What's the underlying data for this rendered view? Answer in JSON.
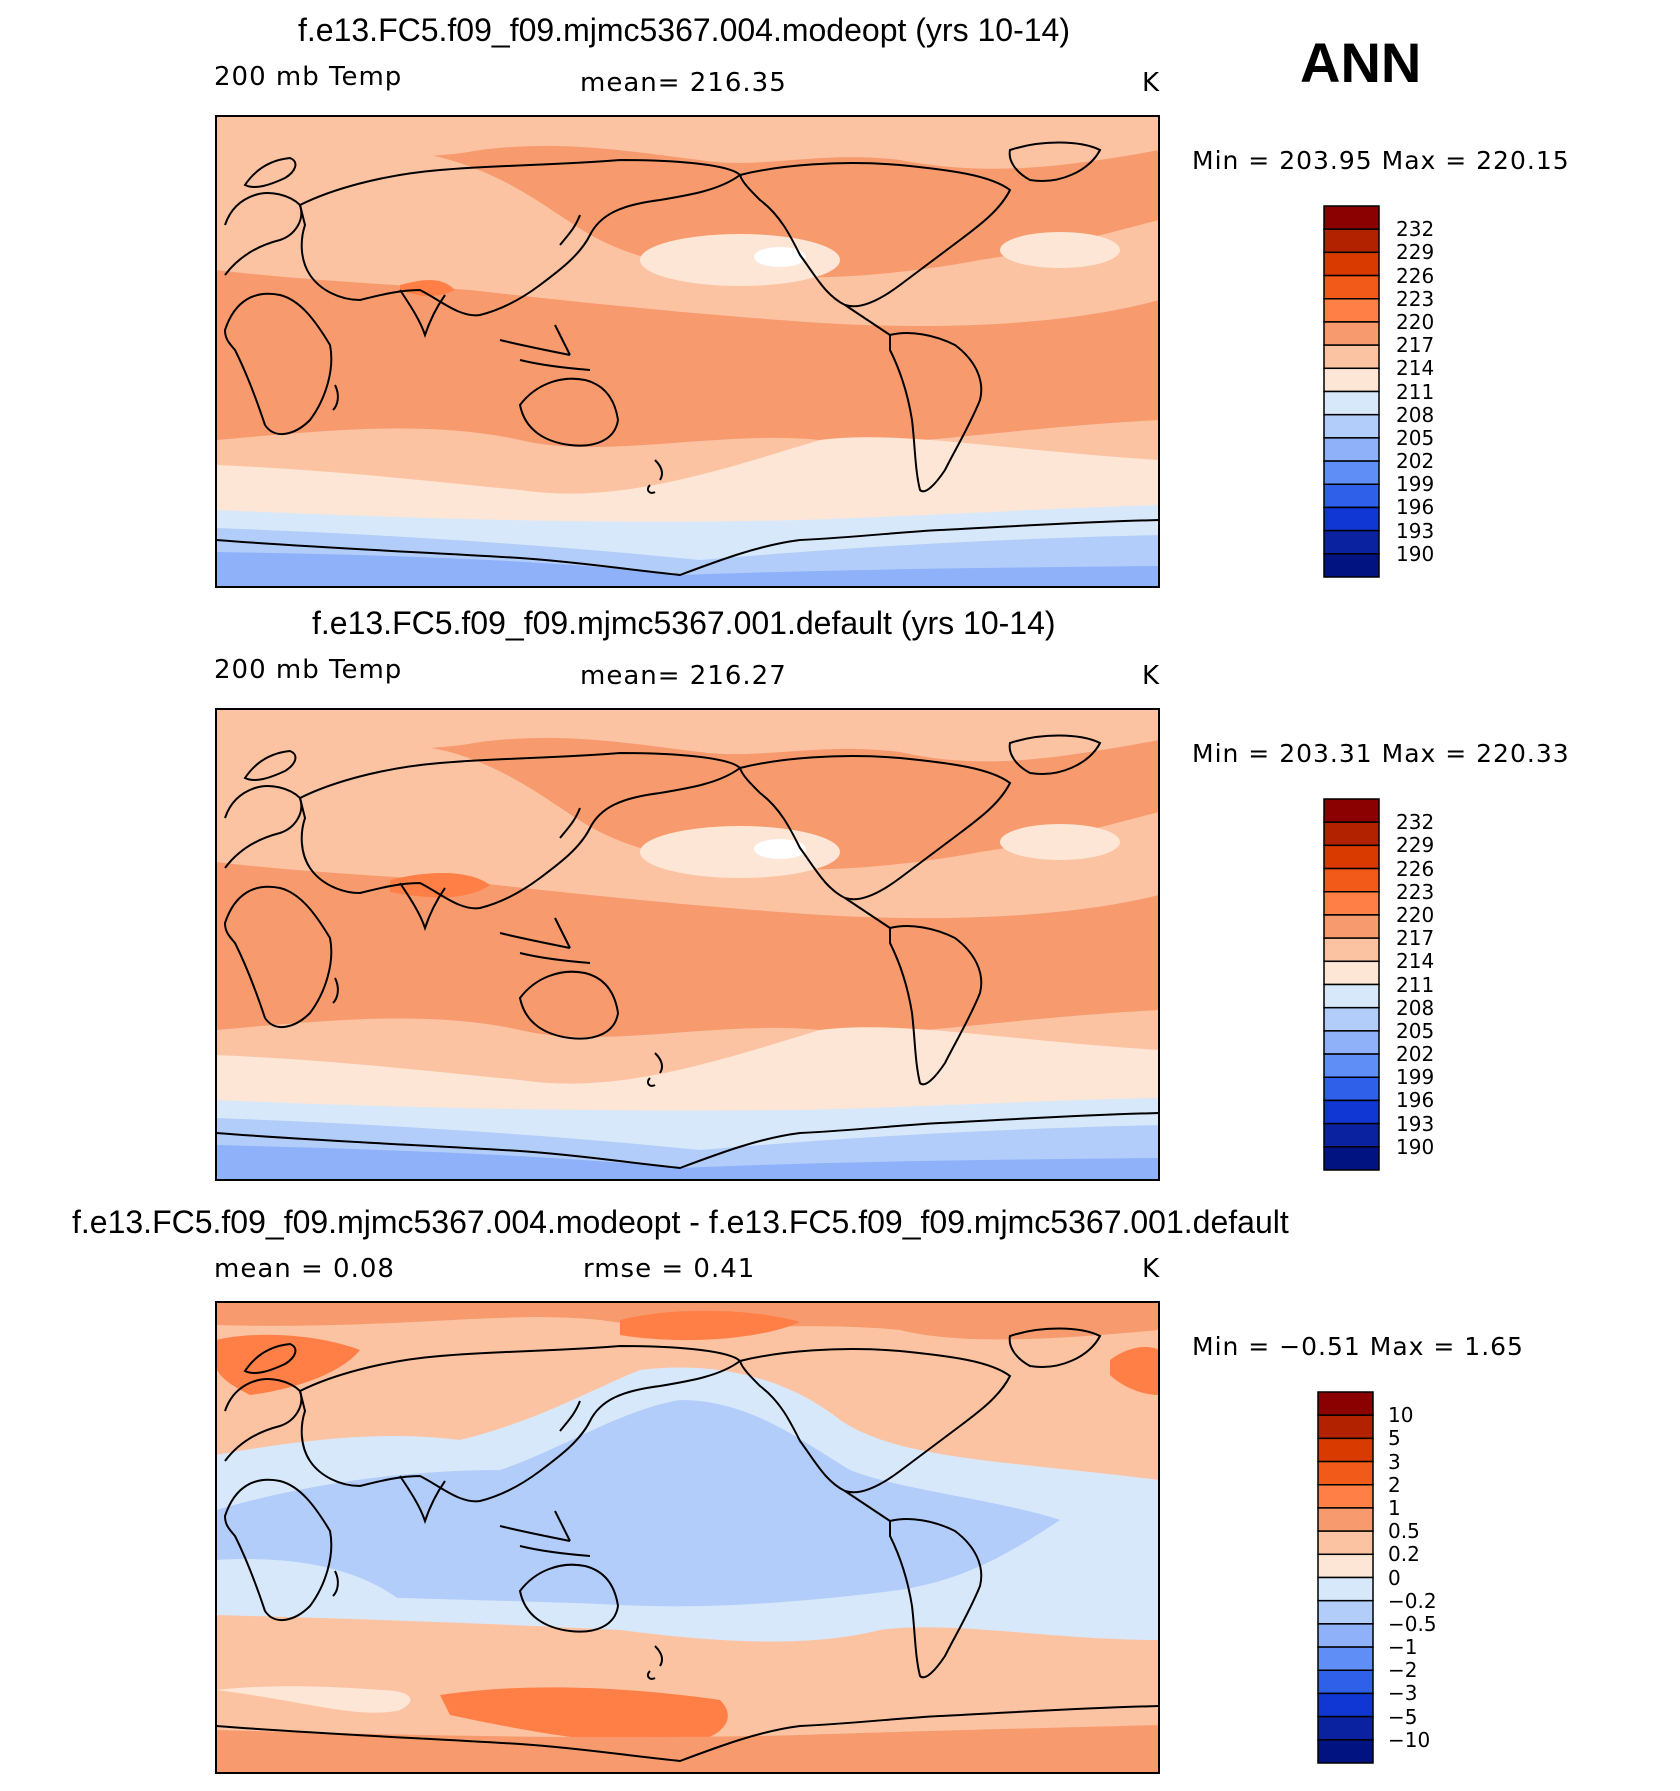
{
  "season": "ANN",
  "panels": [
    {
      "title": "f.e13.FC5.f09_f09.mjmc5367.004.modeopt (yrs 10-14)",
      "left_label": "200 mb Temp",
      "center_label": "mean= 216.35",
      "units": "K",
      "minmax": "Min = 203.95 Max = 220.15",
      "colorbar": [
        "232",
        "229",
        "226",
        "223",
        "220",
        "217",
        "214",
        "211",
        "208",
        "205",
        "202",
        "199",
        "196",
        "193",
        "190"
      ]
    },
    {
      "title": "f.e13.FC5.f09_f09.mjmc5367.001.default (yrs 10-14)",
      "left_label": "200 mb Temp",
      "center_label": "mean= 216.27",
      "units": "K",
      "minmax": "Min = 203.31 Max = 220.33",
      "colorbar": [
        "232",
        "229",
        "226",
        "223",
        "220",
        "217",
        "214",
        "211",
        "208",
        "205",
        "202",
        "199",
        "196",
        "193",
        "190"
      ]
    },
    {
      "title": "f.e13.FC5.f09_f09.mjmc5367.004.modeopt - f.e13.FC5.f09_f09.mjmc5367.001.default",
      "left_label": "mean = 0.08",
      "center_label": "rmse = 0.41",
      "units": "K",
      "minmax": "Min = −0.51 Max = 1.65",
      "colorbar": [
        "10",
        "5",
        "3",
        "2",
        "1",
        "0.5",
        "0.2",
        "0",
        "−0.2",
        "−0.5",
        "−1",
        "−2",
        "−3",
        "−5",
        "−10"
      ]
    }
  ],
  "palette": [
    "#8b0000",
    "#b22200",
    "#d93a00",
    "#f25a1a",
    "#ff7f47",
    "#f79b6e",
    "#fcc3a3",
    "#fde6d5",
    "#d8e8fb",
    "#b3cdfa",
    "#8eb1f9",
    "#5f8ef6",
    "#2f60ea",
    "#1036d4",
    "#0a22a0",
    "#001380"
  ],
  "chart_data": [
    {
      "type": "heatmap",
      "title": "f.e13.FC5.f09_f09.mjmc5367.004.modeopt (yrs 10-14)",
      "variable": "200 mb Temp",
      "units": "K",
      "mean": 216.35,
      "min": 203.95,
      "max": 220.15,
      "levels": [
        190,
        193,
        196,
        199,
        202,
        205,
        208,
        211,
        214,
        217,
        220,
        223,
        226,
        229,
        232
      ]
    },
    {
      "type": "heatmap",
      "title": "f.e13.FC5.f09_f09.mjmc5367.001.default (yrs 10-14)",
      "variable": "200 mb Temp",
      "units": "K",
      "mean": 216.27,
      "min": 203.31,
      "max": 220.33,
      "levels": [
        190,
        193,
        196,
        199,
        202,
        205,
        208,
        211,
        214,
        217,
        220,
        223,
        226,
        229,
        232
      ]
    },
    {
      "type": "heatmap",
      "title": "f.e13.FC5.f09_f09.mjmc5367.004.modeopt - f.e13.FC5.f09_f09.mjmc5367.001.default",
      "units": "K",
      "mean": 0.08,
      "rmse": 0.41,
      "min": -0.51,
      "max": 1.65,
      "levels": [
        -10,
        -5,
        -3,
        -2,
        -1,
        -0.5,
        -0.2,
        0,
        0.2,
        0.5,
        1,
        2,
        3,
        5,
        10
      ]
    }
  ]
}
